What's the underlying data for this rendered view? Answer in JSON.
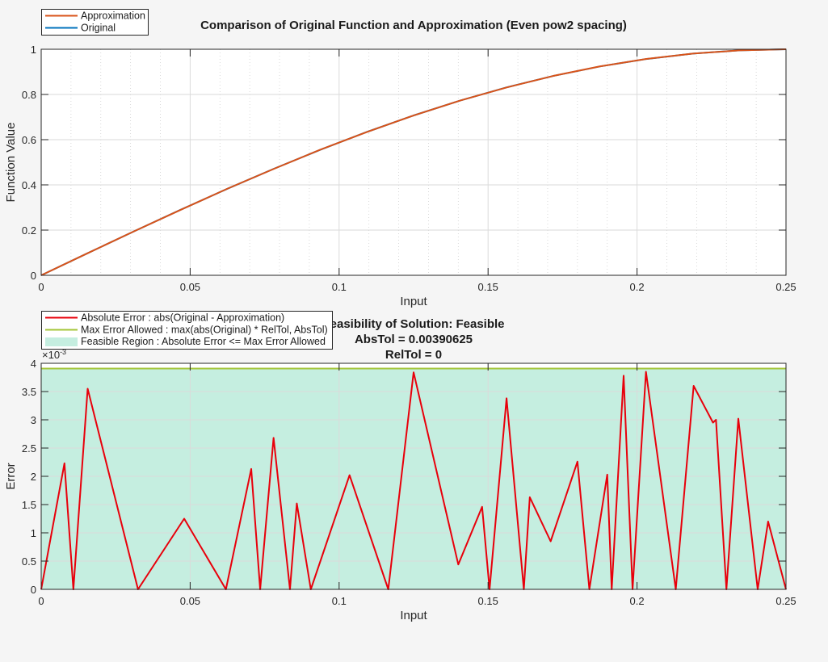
{
  "chart_data": [
    {
      "type": "line",
      "title": "Comparison of Original Function and Approximation (Even pow2 spacing)",
      "xlabel": "Input",
      "ylabel": "Function Value",
      "xlim": [
        0,
        0.25
      ],
      "ylim": [
        0,
        1
      ],
      "xticks": [
        "0",
        "0.05",
        "0.1",
        "0.15",
        "0.2",
        "0.25"
      ],
      "yticks": [
        "0",
        "0.2",
        "0.4",
        "0.6",
        "0.8",
        "1"
      ],
      "grid": true,
      "legend_position": "top-left",
      "series": [
        {
          "name": "Approximation",
          "color": "#d95319",
          "x": [
            0,
            0.015625,
            0.03125,
            0.046875,
            0.0625,
            0.078125,
            0.09375,
            0.109375,
            0.125,
            0.140625,
            0.15625,
            0.171875,
            0.1875,
            0.203125,
            0.21875,
            0.234375,
            0.25
          ],
          "y": [
            0,
            0.098,
            0.195,
            0.29,
            0.383,
            0.471,
            0.556,
            0.634,
            0.707,
            0.773,
            0.831,
            0.882,
            0.924,
            0.957,
            0.981,
            0.995,
            1.0
          ]
        },
        {
          "name": "Original",
          "color": "#0072bd",
          "x": [
            0,
            0.015625,
            0.03125,
            0.046875,
            0.0625,
            0.078125,
            0.09375,
            0.109375,
            0.125,
            0.140625,
            0.15625,
            0.171875,
            0.1875,
            0.203125,
            0.21875,
            0.234375,
            0.25
          ],
          "y": [
            0,
            0.098,
            0.1951,
            0.2903,
            0.3827,
            0.4714,
            0.5556,
            0.6344,
            0.7071,
            0.773,
            0.8315,
            0.8819,
            0.9239,
            0.9569,
            0.9808,
            0.9952,
            1.0
          ]
        }
      ]
    },
    {
      "type": "line",
      "title_lines": [
        "Feasibility of Solution: Feasible",
        "AbsTol = 0.00390625",
        "RelTol = 0"
      ],
      "xlabel": "Input",
      "ylabel": "Error",
      "exponent_label": "×10",
      "exponent_power": "-3",
      "xlim": [
        0,
        0.25
      ],
      "ylim": [
        0,
        4
      ],
      "xticks": [
        "0",
        "0.05",
        "0.1",
        "0.15",
        "0.2",
        "0.25"
      ],
      "yticks": [
        "0",
        "0.5",
        "1",
        "1.5",
        "2",
        "2.5",
        "3",
        "3.5",
        "4"
      ],
      "grid": true,
      "legend_position": "top-left",
      "series": [
        {
          "name": "Absolute Error : abs(Original - Approximation)",
          "color": "#e8000b",
          "x": [
            0,
            0.0078,
            0.0108,
            0.0156,
            0.0325,
            0.048,
            0.062,
            0.0705,
            0.0735,
            0.078,
            0.0835,
            0.0858,
            0.0905,
            0.1035,
            0.1165,
            0.125,
            0.14,
            0.148,
            0.1505,
            0.1562,
            0.162,
            0.164,
            0.171,
            0.18,
            0.184,
            0.19,
            0.1915,
            0.1955,
            0.1985,
            0.203,
            0.213,
            0.219,
            0.2255,
            0.2265,
            0.23,
            0.234,
            0.2405,
            0.244,
            0.25
          ],
          "y": [
            0,
            2.23,
            0,
            3.55,
            0,
            1.25,
            0,
            2.13,
            0,
            2.68,
            0,
            1.52,
            0,
            2.02,
            0,
            3.84,
            0.44,
            1.46,
            0,
            3.38,
            0,
            1.63,
            0.85,
            2.26,
            0,
            2.03,
            0,
            3.78,
            0,
            3.85,
            0,
            3.6,
            2.95,
            3.0,
            0,
            3.02,
            0,
            1.2,
            0
          ]
        },
        {
          "name": "Max Error Allowed : max(abs(Original) * RelTol, AbsTol)",
          "color": "#a4c639",
          "x": [
            0,
            0.25
          ],
          "y": [
            3.90625,
            3.90625
          ]
        }
      ],
      "region": {
        "name": "Feasible Region : Absolute Error <= Max Error Allowed",
        "color": "#c5eee0",
        "ymax": 3.90625
      }
    }
  ]
}
